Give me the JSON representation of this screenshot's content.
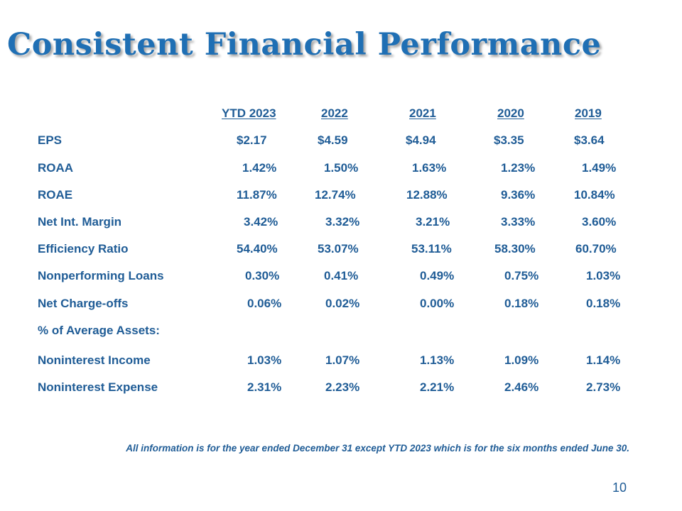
{
  "title": "Consistent Financial Performance",
  "table": {
    "headers": [
      "YTD 2023",
      "2022",
      "2021",
      "2020",
      "2019"
    ],
    "rows": [
      {
        "label": "EPS",
        "values": [
          "$2.17",
          "$4.59",
          "$4.94",
          "$3.35",
          "$3.64"
        ]
      },
      {
        "label": "ROAA",
        "values": [
          "1.42%",
          "1.50%",
          "1.63%",
          "1.23%",
          "1.49%"
        ]
      },
      {
        "label": "ROAE",
        "values": [
          "11.87%",
          "12.74%",
          "12.88%",
          "9.36%",
          "10.84%"
        ]
      },
      {
        "label": "Net Int. Margin",
        "values": [
          "3.42%",
          "3.32%",
          "3.21%",
          "3.33%",
          "3.60%"
        ]
      },
      {
        "label": "Efficiency Ratio",
        "values": [
          "54.40%",
          "53.07%",
          "53.11%",
          "58.30%",
          "60.70%"
        ]
      },
      {
        "label": "Nonperforming Loans",
        "values": [
          "0.30%",
          "0.41%",
          "0.49%",
          "0.75%",
          "1.03%"
        ]
      },
      {
        "label": "Net Charge-offs",
        "values": [
          "0.06%",
          "0.02%",
          "0.00%",
          "0.18%",
          "0.18%"
        ]
      },
      {
        "label": "% of Average Assets:",
        "values": [
          "",
          "",
          "",
          "",
          ""
        ]
      },
      {
        "label": "Noninterest Income",
        "values": [
          "1.03%",
          "1.07%",
          "1.13%",
          "1.09%",
          "1.14%"
        ]
      },
      {
        "label": "Noninterest Expense",
        "values": [
          "2.31%",
          "2.23%",
          "2.21%",
          "2.46%",
          "2.73%"
        ]
      }
    ]
  },
  "footnote": "All information is for the year ended December 31 except YTD 2023 which is for the six months ended June 30.",
  "page_number": "10",
  "colors": {
    "title": "#1f6fb4",
    "text": "#1f5c96"
  }
}
